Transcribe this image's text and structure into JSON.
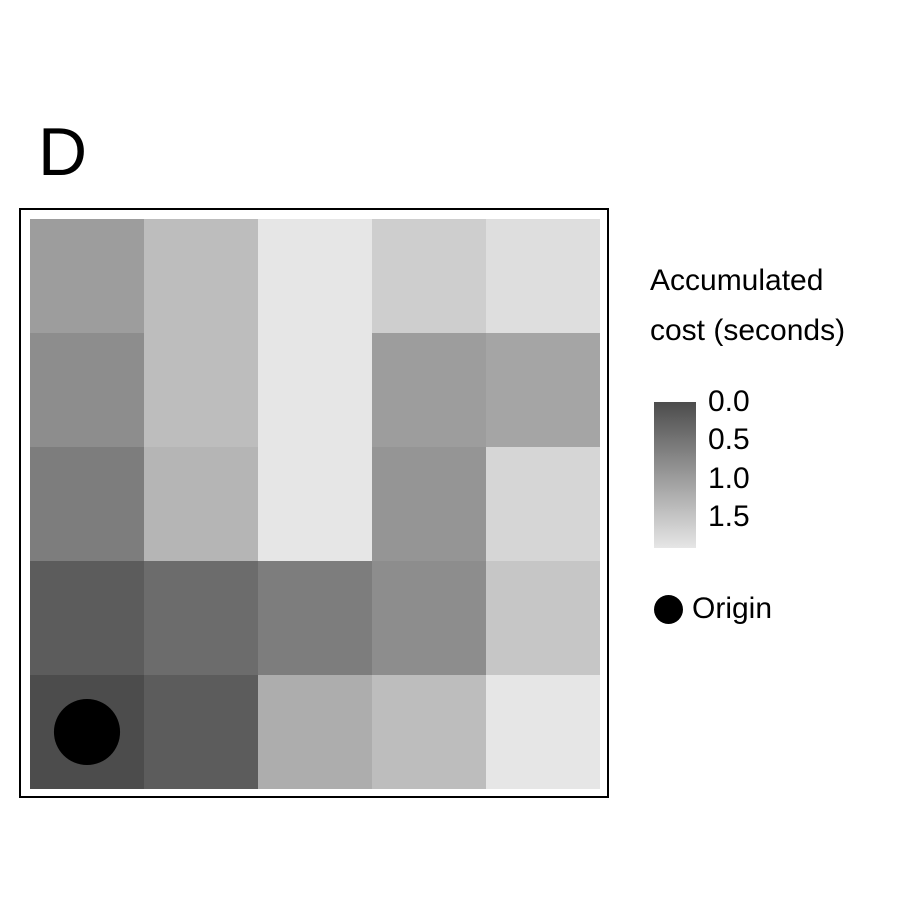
{
  "panel_label": "D",
  "chart_data": {
    "type": "heatmap",
    "title": "",
    "xlabel": "",
    "ylabel": "",
    "rows": 5,
    "cols": 5,
    "values": [
      [
        1.0,
        1.4,
        1.9,
        1.6,
        1.8
      ],
      [
        0.8,
        1.4,
        1.9,
        1.0,
        1.1
      ],
      [
        0.6,
        1.3,
        1.9,
        0.9,
        1.7
      ],
      [
        0.2,
        0.4,
        0.6,
        0.8,
        1.5
      ],
      [
        0.0,
        0.2,
        1.2,
        1.4,
        1.9
      ]
    ],
    "color_scale": {
      "min": 0.0,
      "max": 1.9,
      "low_color": "#4c4c4c",
      "high_color": "#e6e6e6"
    },
    "origin": {
      "row": 4,
      "col": 0
    },
    "legend": {
      "title_lines": [
        "Accumulated",
        "cost (seconds)"
      ],
      "ticks": [
        "0.0",
        "0.5",
        "1.0",
        "1.5"
      ],
      "tick_values": [
        0.0,
        0.5,
        1.0,
        1.5
      ],
      "origin_label": "Origin",
      "position": "right"
    }
  }
}
